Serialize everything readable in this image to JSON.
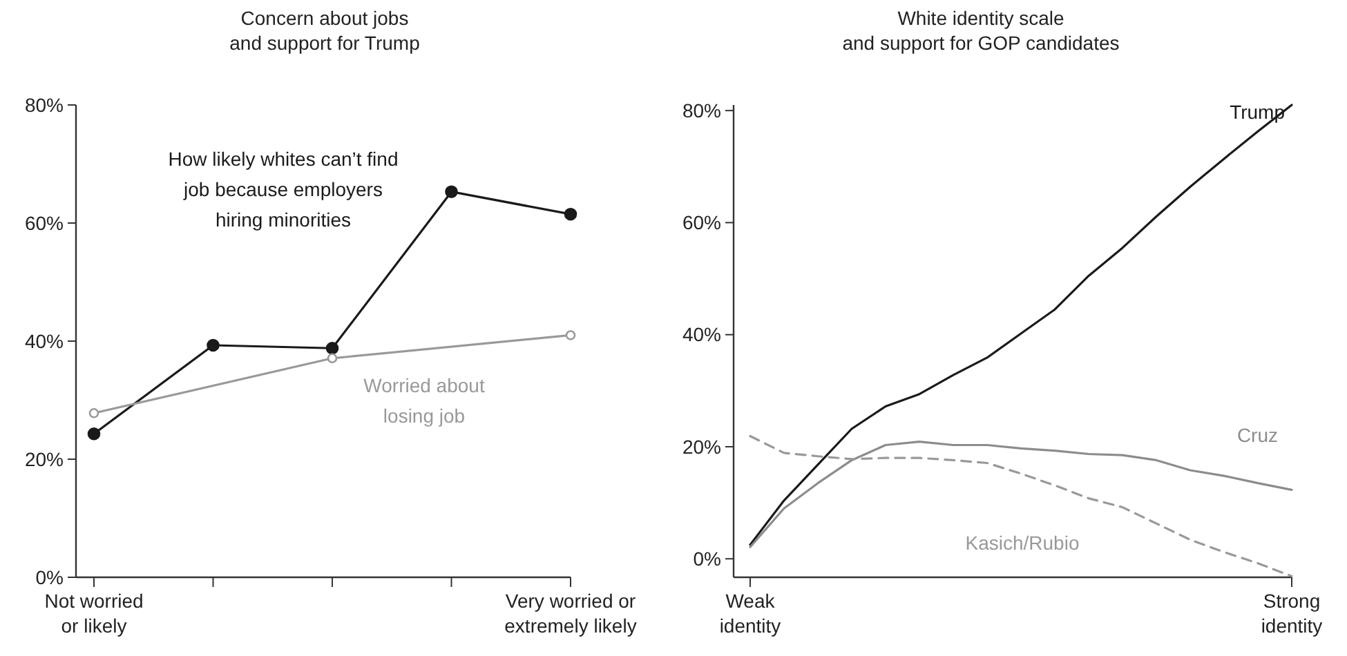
{
  "chart_data": [
    {
      "type": "line",
      "title": "Concern about jobs\nand support for Trump",
      "categories": [
        "Not worried\nor likely",
        null,
        null,
        null,
        "Very worried or\nextremely likely"
      ],
      "ylim": [
        0,
        80
      ],
      "yticks": [
        {
          "value": 0,
          "label": "0%"
        },
        {
          "value": 20,
          "label": "20%"
        },
        {
          "value": 40,
          "label": "40%"
        },
        {
          "value": 60,
          "label": "60%"
        },
        {
          "value": 80,
          "label": "80%"
        }
      ],
      "marker": "circle",
      "series": [
        {
          "name": "How likely whites can’t find\njob because employers\nhiring minorities",
          "color": "#1a1a1a",
          "values": [
            24.3,
            39.3,
            38.8,
            65.3,
            61.5
          ]
        },
        {
          "name": "Worried about\nlosing job",
          "color": "#999999",
          "values": [
            27.8,
            null,
            37.1,
            null,
            41.0
          ]
        }
      ]
    },
    {
      "type": "line",
      "title": "White identity scale\nand support for GOP candidates",
      "categories": [
        "Weak\nidentity",
        null,
        null,
        null,
        null,
        null,
        null,
        null,
        null,
        null,
        null,
        null,
        null,
        null,
        null,
        null,
        "Strong\nidentity"
      ],
      "ylim": [
        -3.3,
        81
      ],
      "yticks": [
        {
          "value": 0,
          "label": "0%"
        },
        {
          "value": 20,
          "label": "20%"
        },
        {
          "value": 40,
          "label": "40%"
        },
        {
          "value": 60,
          "label": "60%"
        },
        {
          "value": 80,
          "label": "80%"
        }
      ],
      "marker": "none",
      "series": [
        {
          "name": "Trump",
          "color": "#1a1a1a",
          "values": [
            2.5,
            10.4,
            16.8,
            23.2,
            27.2,
            29.4,
            32.8,
            35.9,
            40.2,
            44.5,
            50.5,
            55.5,
            61.1,
            66.4,
            71.4,
            76.3,
            81
          ]
        },
        {
          "name": "Cruz",
          "color": "#8c8c8c",
          "values": [
            2.1,
            9.0,
            13.5,
            17.6,
            20.3,
            20.9,
            20.3,
            20.3,
            19.7,
            19.3,
            18.7,
            18.5,
            17.6,
            15.8,
            14.8,
            13.5,
            12.3
          ]
        },
        {
          "name": "Kasich/Rubio",
          "color": "#999999",
          "line_style": "dashed",
          "values": [
            21.9,
            18.9,
            18.3,
            17.8,
            18.0,
            18.0,
            17.6,
            17.1,
            15.2,
            13.1,
            10.8,
            9.2,
            6.3,
            3.4,
            1.2,
            -0.8,
            -3.1
          ]
        }
      ]
    }
  ]
}
